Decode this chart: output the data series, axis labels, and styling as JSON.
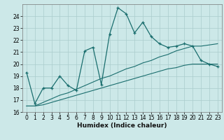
{
  "xlabel": "Humidex (Indice chaleur)",
  "background_color": "#cce8e8",
  "grid_color": "#aacccc",
  "line_color": "#1a6e6e",
  "x_data": [
    0,
    1,
    2,
    3,
    4,
    5,
    6,
    7,
    8,
    9,
    10,
    11,
    12,
    13,
    14,
    15,
    16,
    17,
    18,
    19,
    20,
    21,
    22,
    23
  ],
  "y_main": [
    19.3,
    16.7,
    18.0,
    18.0,
    19.0,
    18.2,
    17.8,
    21.1,
    21.4,
    18.3,
    22.5,
    24.7,
    24.2,
    22.6,
    23.5,
    22.3,
    21.7,
    21.4,
    21.5,
    21.7,
    21.5,
    20.3,
    20.0,
    19.8
  ],
  "y_line1": [
    16.5,
    16.5,
    16.8,
    17.1,
    17.4,
    17.6,
    17.9,
    18.2,
    18.5,
    18.8,
    19.0,
    19.3,
    19.6,
    19.8,
    20.1,
    20.3,
    20.6,
    20.8,
    21.1,
    21.3,
    21.5,
    21.5,
    21.6,
    21.7
  ],
  "y_line2": [
    16.5,
    16.5,
    16.6,
    16.8,
    17.0,
    17.2,
    17.4,
    17.6,
    17.8,
    18.0,
    18.2,
    18.4,
    18.6,
    18.8,
    19.0,
    19.2,
    19.4,
    19.6,
    19.7,
    19.9,
    20.0,
    20.0,
    20.0,
    20.0
  ],
  "xlim": [
    -0.5,
    23.5
  ],
  "ylim": [
    16,
    25
  ],
  "yticks": [
    16,
    17,
    18,
    19,
    20,
    21,
    22,
    23,
    24
  ],
  "xticks": [
    0,
    1,
    2,
    3,
    4,
    5,
    6,
    7,
    8,
    9,
    10,
    11,
    12,
    13,
    14,
    15,
    16,
    17,
    18,
    19,
    20,
    21,
    22,
    23
  ],
  "tick_fontsize": 5.5,
  "xlabel_fontsize": 6.5
}
